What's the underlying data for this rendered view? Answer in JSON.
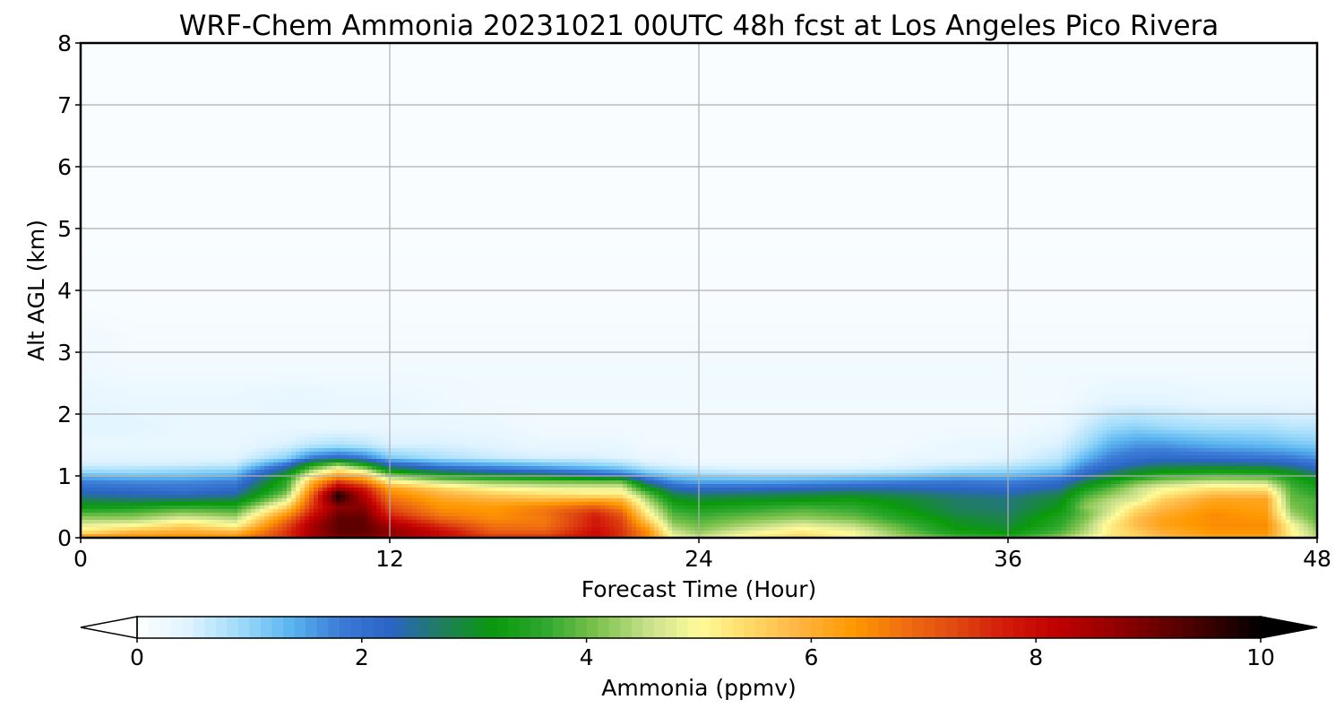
{
  "chart_data": {
    "type": "heatmap",
    "title": "WRF-Chem Ammonia  20231021 00UTC 48h fcst at Los Angeles Pico Rivera",
    "xlabel": "Forecast Time (Hour)",
    "ylabel": "Alt AGL (km)",
    "xlim": [
      0,
      48
    ],
    "ylim": [
      0,
      8
    ],
    "xticks": [
      "0",
      "12",
      "24",
      "36",
      "48"
    ],
    "xtick_values": [
      0,
      12,
      24,
      36,
      48
    ],
    "yticks": [
      "0",
      "1",
      "2",
      "3",
      "4",
      "5",
      "6",
      "7",
      "8"
    ],
    "ytick_values": [
      0,
      1,
      2,
      3,
      4,
      5,
      6,
      7,
      8
    ],
    "grid": true,
    "colorbar": {
      "label": "Ammonia  (ppmv)",
      "range": [
        0,
        10
      ],
      "ticks": [
        "0",
        "2",
        "4",
        "6",
        "8",
        "10"
      ],
      "tick_values": [
        0,
        2,
        4,
        6,
        8,
        10
      ],
      "extend": "both",
      "colors": [
        "#ffffff",
        "#dff3ff",
        "#9fdcfa",
        "#5ab5f0",
        "#3b7bd6",
        "#2a64c4",
        "#1f7f5a",
        "#0a9a0a",
        "#2fa82f",
        "#7cc24c",
        "#c7e08a",
        "#fffb9a",
        "#ffd966",
        "#ffb340",
        "#ff9900",
        "#f07010",
        "#e04a10",
        "#d31b0a",
        "#c00000",
        "#9a0000",
        "#6b0000",
        "#3a0000",
        "#000000"
      ]
    },
    "hours": [
      0,
      2,
      4,
      6,
      8,
      9,
      10,
      11,
      12,
      14,
      16,
      18,
      20,
      21,
      22,
      23,
      24,
      26,
      28,
      30,
      32,
      34,
      36,
      38,
      39,
      40,
      41,
      42,
      44,
      46,
      47,
      48
    ],
    "altitudes_km": [
      0,
      0.1,
      0.2,
      0.3,
      0.4,
      0.5,
      0.6,
      0.7,
      0.8,
      0.9,
      1.0,
      1.1,
      1.2,
      1.3,
      1.5,
      1.8,
      2.2,
      2.7,
      3.2,
      4.0,
      6.0,
      8.0
    ],
    "ammonia_ppmv": [
      [
        6.5,
        6.5,
        6.5,
        6.5,
        7.5,
        8.5,
        9.0,
        9.0,
        8.5,
        8.0,
        7.5,
        7.5,
        8.0,
        7.5,
        6.5,
        5.0,
        4.6,
        5.2,
        5.5,
        5.0,
        4.3,
        3.8,
        3.6,
        4.2,
        4.8,
        5.3,
        5.5,
        5.8,
        6.2,
        6.2,
        5.2,
        4.5
      ],
      [
        5.2,
        5.8,
        6.0,
        5.8,
        7.5,
        8.5,
        9.2,
        9.2,
        8.8,
        8.0,
        7.0,
        7.0,
        8.0,
        7.5,
        6.5,
        4.6,
        4.2,
        4.8,
        5.2,
        4.9,
        4.0,
        3.3,
        3.1,
        3.8,
        4.4,
        5.2,
        5.6,
        6.0,
        6.4,
        6.4,
        5.1,
        4.3
      ],
      [
        4.8,
        5.0,
        5.5,
        5.0,
        7.2,
        8.5,
        9.2,
        9.2,
        8.5,
        7.5,
        6.8,
        6.8,
        7.8,
        7.4,
        6.0,
        4.3,
        4.0,
        4.4,
        4.8,
        4.5,
        3.8,
        3.1,
        2.9,
        3.6,
        4.3,
        5.2,
        5.8,
        6.2,
        6.5,
        6.5,
        5.0,
        4.1
      ],
      [
        4.3,
        4.3,
        4.8,
        4.5,
        6.8,
        8.2,
        9.2,
        9.2,
        8.0,
        7.0,
        6.5,
        6.7,
        7.8,
        7.3,
        5.5,
        4.0,
        3.8,
        4.1,
        4.3,
        4.1,
        3.5,
        3.0,
        2.8,
        3.5,
        4.1,
        5.0,
        5.8,
        6.2,
        6.5,
        6.4,
        4.6,
        3.9
      ],
      [
        3.8,
        3.9,
        4.2,
        4.0,
        6.2,
        7.8,
        9.0,
        9.0,
        7.5,
        6.6,
        6.4,
        6.8,
        7.6,
        7.0,
        5.1,
        3.8,
        3.6,
        3.8,
        4.0,
        3.8,
        3.3,
        2.8,
        2.7,
        3.3,
        4.0,
        4.7,
        5.6,
        6.0,
        6.5,
        6.3,
        4.3,
        3.8
      ],
      [
        3.2,
        3.3,
        3.6,
        3.5,
        5.5,
        7.5,
        8.8,
        8.8,
        7.2,
        6.4,
        6.3,
        6.6,
        7.0,
        6.5,
        4.8,
        3.5,
        3.3,
        3.5,
        3.7,
        3.6,
        3.1,
        2.7,
        2.6,
        3.1,
        4.2,
        4.6,
        5.3,
        5.8,
        6.3,
        6.2,
        4.1,
        3.8
      ],
      [
        2.8,
        2.7,
        2.8,
        2.9,
        4.8,
        7.3,
        9.5,
        8.5,
        6.9,
        6.2,
        6.0,
        6.0,
        6.2,
        6.0,
        4.4,
        3.2,
        3.0,
        3.1,
        3.2,
        3.3,
        3.0,
        2.7,
        2.6,
        3.0,
        4.0,
        4.5,
        4.8,
        5.6,
        6.2,
        6.2,
        4.0,
        3.8
      ],
      [
        2.4,
        2.3,
        2.2,
        2.4,
        4.2,
        7.0,
        9.8,
        8.2,
        6.6,
        5.9,
        5.6,
        5.4,
        5.2,
        5.2,
        4.0,
        2.8,
        2.6,
        2.7,
        2.8,
        2.9,
        2.7,
        2.5,
        2.4,
        2.8,
        3.7,
        4.2,
        4.6,
        5.2,
        5.8,
        5.8,
        3.9,
        3.6
      ],
      [
        2.1,
        2.0,
        1.9,
        2.1,
        3.8,
        6.5,
        8.5,
        7.8,
        6.2,
        5.5,
        5.0,
        4.8,
        4.8,
        4.8,
        3.2,
        2.3,
        2.1,
        2.1,
        2.2,
        2.3,
        2.3,
        2.2,
        2.1,
        2.4,
        3.3,
        3.9,
        4.5,
        4.9,
        5.3,
        5.2,
        3.8,
        3.4
      ],
      [
        1.8,
        1.7,
        1.7,
        1.8,
        3.6,
        6.0,
        7.5,
        6.8,
        5.2,
        4.5,
        4.2,
        4.1,
        4.0,
        4.0,
        2.4,
        1.7,
        1.5,
        1.5,
        1.6,
        1.7,
        1.8,
        1.9,
        1.8,
        2.1,
        2.8,
        3.4,
        4.0,
        4.3,
        4.6,
        4.5,
        3.6,
        3.1
      ],
      [
        1.3,
        1.2,
        1.2,
        1.4,
        3.2,
        5.2,
        6.2,
        5.8,
        4.2,
        3.4,
        3.1,
        2.8,
        2.4,
        2.2,
        1.5,
        1.1,
        1.0,
        0.9,
        0.9,
        1.0,
        1.1,
        1.3,
        1.3,
        1.6,
        2.3,
        2.8,
        3.2,
        3.6,
        3.8,
        3.7,
        3.3,
        2.8
      ],
      [
        0.8,
        0.8,
        0.9,
        1.0,
        2.6,
        4.2,
        5.2,
        4.5,
        3.0,
        2.3,
        2.0,
        1.8,
        1.5,
        1.3,
        0.9,
        0.7,
        0.6,
        0.5,
        0.5,
        0.5,
        0.6,
        0.8,
        0.9,
        1.2,
        1.9,
        2.4,
        2.8,
        3.0,
        3.2,
        3.1,
        2.8,
        2.3
      ],
      [
        0.5,
        0.5,
        0.5,
        0.6,
        1.8,
        3.2,
        3.9,
        3.2,
        2.0,
        1.5,
        1.3,
        1.1,
        0.9,
        0.8,
        0.5,
        0.4,
        0.3,
        0.3,
        0.3,
        0.3,
        0.4,
        0.5,
        0.6,
        0.9,
        1.6,
        2.0,
        2.3,
        2.5,
        2.5,
        2.4,
        2.2,
        1.9
      ],
      [
        0.4,
        0.4,
        0.4,
        0.4,
        1.0,
        1.8,
        2.1,
        1.8,
        1.1,
        0.8,
        0.6,
        0.5,
        0.5,
        0.4,
        0.3,
        0.3,
        0.2,
        0.2,
        0.2,
        0.2,
        0.3,
        0.3,
        0.4,
        0.7,
        1.3,
        1.8,
        2.0,
        2.1,
        2.0,
        1.9,
        1.8,
        1.6
      ],
      [
        0.3,
        0.3,
        0.3,
        0.3,
        0.5,
        0.7,
        0.8,
        0.7,
        0.5,
        0.5,
        0.4,
        0.3,
        0.3,
        0.3,
        0.2,
        0.2,
        0.2,
        0.2,
        0.2,
        0.2,
        0.2,
        0.3,
        0.3,
        0.5,
        0.9,
        1.4,
        1.6,
        1.6,
        1.4,
        1.3,
        1.2,
        1.1
      ],
      [
        0.4,
        0.4,
        0.3,
        0.3,
        0.3,
        0.3,
        0.3,
        0.3,
        0.3,
        0.3,
        0.3,
        0.2,
        0.2,
        0.2,
        0.2,
        0.2,
        0.2,
        0.2,
        0.2,
        0.2,
        0.2,
        0.2,
        0.2,
        0.3,
        0.6,
        0.9,
        1.0,
        0.9,
        0.8,
        0.8,
        0.7,
        0.7
      ],
      [
        0.35,
        0.3,
        0.3,
        0.3,
        0.35,
        0.35,
        0.3,
        0.3,
        0.3,
        0.25,
        0.2,
        0.2,
        0.2,
        0.2,
        0.2,
        0.2,
        0.2,
        0.2,
        0.2,
        0.2,
        0.2,
        0.2,
        0.2,
        0.2,
        0.3,
        0.4,
        0.4,
        0.4,
        0.3,
        0.3,
        0.3,
        0.3
      ],
      [
        0.25,
        0.2,
        0.2,
        0.2,
        0.2,
        0.2,
        0.2,
        0.2,
        0.2,
        0.2,
        0.2,
        0.2,
        0.2,
        0.2,
        0.2,
        0.2,
        0.2,
        0.2,
        0.2,
        0.2,
        0.2,
        0.2,
        0.2,
        0.2,
        0.2,
        0.2,
        0.2,
        0.2,
        0.2,
        0.2,
        0.2,
        0.2
      ],
      [
        0.2,
        0.15,
        0.15,
        0.15,
        0.15,
        0.15,
        0.15,
        0.15,
        0.15,
        0.15,
        0.15,
        0.15,
        0.15,
        0.15,
        0.15,
        0.15,
        0.15,
        0.15,
        0.15,
        0.15,
        0.15,
        0.15,
        0.15,
        0.15,
        0.15,
        0.15,
        0.15,
        0.15,
        0.15,
        0.15,
        0.15,
        0.15
      ],
      [
        0.1,
        0.1,
        0.1,
        0.1,
        0.1,
        0.1,
        0.1,
        0.1,
        0.1,
        0.1,
        0.1,
        0.1,
        0.1,
        0.1,
        0.1,
        0.1,
        0.1,
        0.1,
        0.1,
        0.1,
        0.1,
        0.1,
        0.1,
        0.1,
        0.1,
        0.1,
        0.1,
        0.1,
        0.1,
        0.1,
        0.1,
        0.1
      ],
      [
        0.08,
        0.08,
        0.08,
        0.08,
        0.08,
        0.08,
        0.08,
        0.08,
        0.08,
        0.08,
        0.08,
        0.08,
        0.08,
        0.08,
        0.08,
        0.08,
        0.08,
        0.08,
        0.08,
        0.08,
        0.08,
        0.08,
        0.08,
        0.08,
        0.08,
        0.08,
        0.08,
        0.08,
        0.08,
        0.08,
        0.08,
        0.08
      ],
      [
        0.08,
        0.08,
        0.08,
        0.08,
        0.08,
        0.08,
        0.08,
        0.08,
        0.08,
        0.08,
        0.08,
        0.08,
        0.08,
        0.08,
        0.08,
        0.08,
        0.08,
        0.08,
        0.08,
        0.08,
        0.08,
        0.08,
        0.08,
        0.08,
        0.08,
        0.08,
        0.08,
        0.08,
        0.08,
        0.08,
        0.08,
        0.08
      ]
    ]
  }
}
